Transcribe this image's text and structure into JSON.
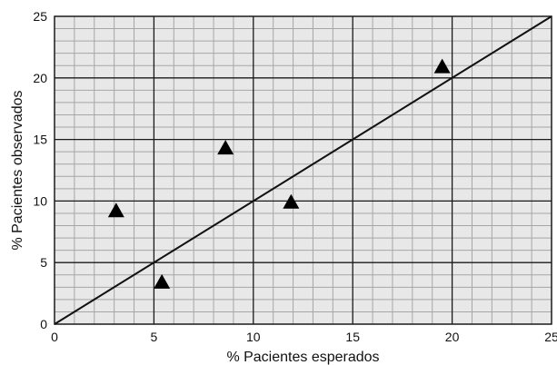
{
  "chart_data": {
    "type": "scatter",
    "xlabel": "% Pacientes esperados",
    "ylabel": "% Pacientes observados",
    "xlim": [
      0,
      25
    ],
    "ylim": [
      0,
      25
    ],
    "x_ticks": [
      "0",
      "5",
      "10",
      "15",
      "20",
      "25"
    ],
    "y_ticks": [
      "0",
      "5",
      "10",
      "15",
      "20",
      "25"
    ],
    "grid": true,
    "marker": "triangle",
    "points": [
      {
        "x": 3.1,
        "y": 9.2
      },
      {
        "x": 5.4,
        "y": 3.4
      },
      {
        "x": 8.6,
        "y": 14.3
      },
      {
        "x": 11.9,
        "y": 9.9
      },
      {
        "x": 19.5,
        "y": 20.9
      }
    ],
    "reference_line": {
      "x": [
        0,
        25
      ],
      "y": [
        0,
        25
      ]
    },
    "colors": {
      "background": "#e8e8e8",
      "minor_grid": "#a6a6a6",
      "major_grid": "#1a1a1a",
      "marker": "#000000",
      "line": "#111111"
    }
  }
}
